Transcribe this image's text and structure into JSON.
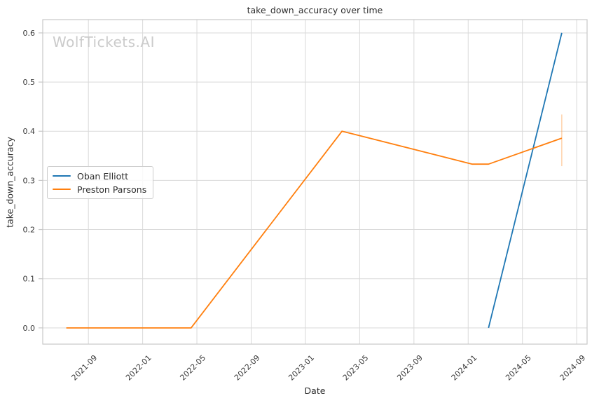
{
  "watermark": "WolfTickets.AI",
  "legend": {
    "position": "center left",
    "items": [
      {
        "label": "Oban Elliott",
        "color": "#1f77b4"
      },
      {
        "label": "Preston Parsons",
        "color": "#ff7f0e"
      }
    ]
  },
  "chart_data": {
    "type": "line",
    "title": "take_down_accuracy over time",
    "xlabel": "Date",
    "ylabel": "take_down_accuracy",
    "grid": true,
    "grid_color": "#d9d9d9",
    "spine_color": "#c7c7c7",
    "tick_label_color": "#3a3a3a",
    "x_ticks": [
      "2021-09",
      "2022-01",
      "2022-05",
      "2022-09",
      "2023-01",
      "2023-05",
      "2023-09",
      "2024-01",
      "2024-05",
      "2024-09"
    ],
    "y_ticks": [
      "0.0",
      "0.1",
      "0.2",
      "0.3",
      "0.4",
      "0.5",
      "0.6"
    ],
    "xlim": [
      "2021-05-20",
      "2024-09-24"
    ],
    "ylim": [
      -0.033,
      0.627
    ],
    "series": [
      {
        "name": "Oban Elliott",
        "color": "#1f77b4",
        "points": [
          {
            "date": "2024-02-16",
            "value": 0.0
          },
          {
            "date": "2024-07-28",
            "value": 0.6
          }
        ]
      },
      {
        "name": "Preston Parsons",
        "color": "#ff7f0e",
        "points": [
          {
            "date": "2021-07-12",
            "value": 0.0
          },
          {
            "date": "2022-04-18",
            "value": 0.0
          },
          {
            "date": "2023-03-22",
            "value": 0.4
          },
          {
            "date": "2024-01-10",
            "value": 0.333
          },
          {
            "date": "2024-02-16",
            "value": 0.333
          },
          {
            "date": "2024-07-28",
            "value": 0.386
          }
        ],
        "error_bar": {
          "date": "2024-07-28",
          "low": 0.329,
          "high": 0.434
        }
      }
    ]
  }
}
